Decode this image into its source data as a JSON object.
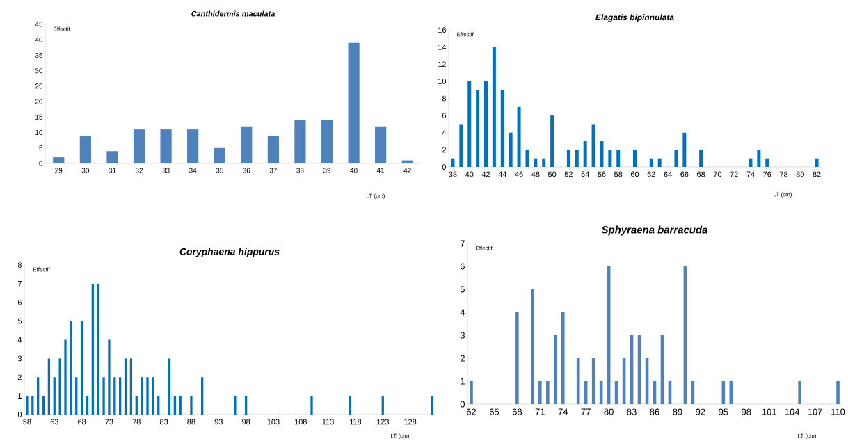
{
  "chart_data": [
    {
      "type": "bar",
      "title": "Canthidermis maculata",
      "ylabel": "Effectif",
      "xlabel": "LT (cm)",
      "color": "#4f81bd",
      "categories": [
        "29",
        "30",
        "31",
        "32",
        "33",
        "34",
        "35",
        "36",
        "37",
        "38",
        "39",
        "40",
        "41",
        "42"
      ],
      "values": [
        2,
        9,
        4,
        11,
        11,
        11,
        5,
        12,
        9,
        14,
        14,
        39,
        12,
        1
      ],
      "ylim": [
        0,
        45
      ],
      "yticks": [
        0,
        5,
        10,
        15,
        20,
        25,
        30,
        35,
        40,
        45
      ]
    },
    {
      "type": "bar",
      "title": "Elagatis bipinnulata",
      "ylabel": "Effectif",
      "xlabel": "LT (cm)",
      "color": "#0070c0",
      "categories": [
        "38",
        null,
        "40",
        null,
        "42",
        null,
        "44",
        null,
        "46",
        null,
        "48",
        null,
        "50",
        null,
        "52",
        null,
        "54",
        null,
        "56",
        null,
        "58",
        null,
        "60",
        null,
        "62",
        null,
        "64",
        null,
        "66",
        null,
        "68",
        null,
        "70",
        null,
        "72",
        null,
        "74",
        null,
        "76",
        null,
        "78",
        null,
        "80",
        null,
        "82"
      ],
      "values": [
        1,
        5,
        10,
        9,
        10,
        14,
        9,
        4,
        7,
        2,
        1,
        1,
        6,
        0,
        2,
        2,
        3,
        5,
        3,
        2,
        2,
        0,
        2,
        0,
        1,
        1,
        0,
        2,
        4,
        0,
        2,
        0,
        0,
        0,
        0,
        0,
        1,
        2,
        1,
        0,
        0,
        0,
        0,
        0,
        1
      ],
      "ylim": [
        0,
        16
      ],
      "yticks": [
        0,
        2,
        4,
        6,
        8,
        10,
        12,
        14,
        16
      ]
    },
    {
      "type": "bar",
      "title": "Coryphaena hippurus",
      "ylabel": "Effectif",
      "xlabel": "LT (cm)",
      "color": "#0070c0",
      "categories": [
        "58",
        null,
        null,
        null,
        null,
        "63",
        null,
        null,
        null,
        null,
        "68",
        null,
        null,
        null,
        null,
        "73",
        null,
        null,
        null,
        null,
        "78",
        null,
        null,
        null,
        null,
        "83",
        null,
        null,
        null,
        null,
        "88",
        null,
        null,
        null,
        null,
        "93",
        null,
        null,
        null,
        null,
        "98",
        null,
        null,
        null,
        null,
        "103",
        null,
        null,
        null,
        null,
        "108",
        null,
        null,
        null,
        null,
        "113",
        null,
        null,
        null,
        null,
        "118",
        null,
        null,
        null,
        null,
        "123",
        null,
        null,
        null,
        null,
        "128",
        null,
        null,
        null,
        null
      ],
      "values": [
        1,
        1,
        2,
        1,
        3,
        2,
        3,
        4,
        5,
        2,
        5,
        1,
        7,
        7,
        2,
        4,
        2,
        2,
        3,
        3,
        1,
        2,
        2,
        2,
        1,
        0,
        3,
        1,
        1,
        0,
        1,
        0,
        2,
        0,
        0,
        0,
        0,
        0,
        1,
        0,
        1,
        0,
        0,
        0,
        0,
        0,
        0,
        0,
        0,
        0,
        0,
        0,
        1,
        0,
        0,
        0,
        0,
        0,
        0,
        1,
        0,
        0,
        0,
        0,
        0,
        1,
        0,
        0,
        0,
        0,
        0,
        0,
        0,
        0,
        1
      ],
      "ylim": [
        0,
        8
      ],
      "yticks": [
        0,
        1,
        2,
        3,
        4,
        5,
        6,
        7,
        8
      ]
    },
    {
      "type": "bar",
      "title": "Sphyraena barracuda",
      "ylabel": "Effectif",
      "xlabel": "LT (cm)",
      "color": "#4f81bd",
      "categories": [
        "62",
        null,
        null,
        "65",
        null,
        null,
        "68",
        null,
        null,
        "71",
        null,
        null,
        "74",
        null,
        null,
        "77",
        null,
        null,
        "80",
        null,
        null,
        "83",
        null,
        null,
        "86",
        null,
        null,
        "89",
        null,
        null,
        "92",
        null,
        null,
        "95",
        null,
        null,
        "98",
        null,
        null,
        "101",
        null,
        null,
        "104",
        null,
        null,
        "107",
        null,
        null,
        "110"
      ],
      "values": [
        1,
        0,
        0,
        0,
        0,
        0,
        4,
        0,
        5,
        1,
        1,
        3,
        4,
        0,
        2,
        1,
        2,
        1,
        6,
        1,
        2,
        3,
        3,
        2,
        1,
        3,
        1,
        0,
        6,
        1,
        0,
        0,
        0,
        1,
        1,
        0,
        0,
        0,
        0,
        0,
        0,
        0,
        0,
        1,
        0,
        0,
        0,
        0,
        1
      ],
      "ylim": [
        0,
        7
      ],
      "yticks": [
        0,
        1,
        2,
        3,
        4,
        5,
        6,
        7
      ]
    }
  ]
}
